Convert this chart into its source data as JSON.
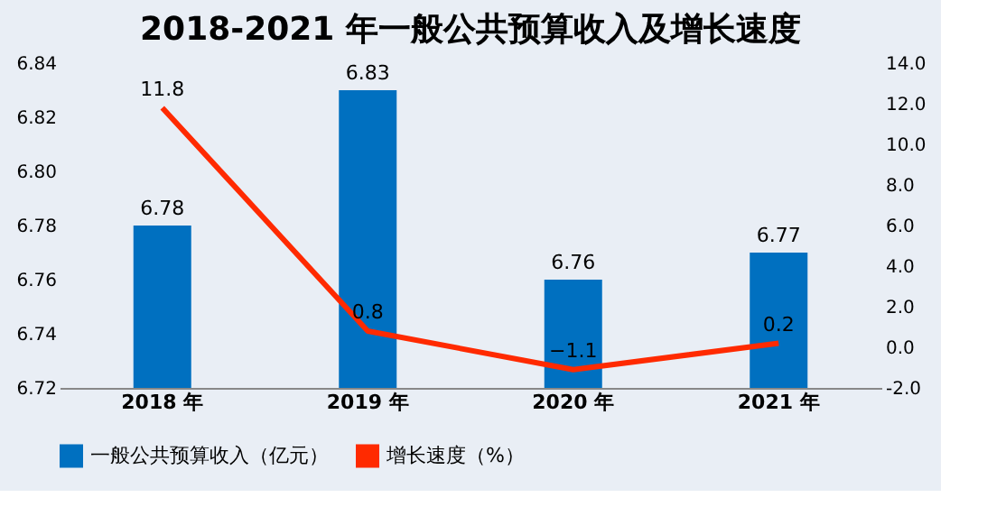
{
  "chart_data": {
    "type": "bar",
    "title": "2018-2021 年一般公共预算收入及增长速度",
    "categories": [
      "2018 年",
      "2019 年",
      "2020 年",
      "2021 年"
    ],
    "series": [
      {
        "name": "一般公共预算收入（亿元）",
        "color": "#0070c0",
        "values": [
          6.78,
          6.83,
          6.76,
          6.77
        ]
      },
      {
        "name": "增长速度（%）",
        "type": "line",
        "axis": "y2",
        "color": "#ff2a00",
        "values": [
          11.8,
          0.8,
          -1.1,
          0.2
        ]
      }
    ],
    "ylim": [
      6.72,
      6.84
    ],
    "yticks": [
      6.72,
      6.74,
      6.76,
      6.78,
      {
        "value": 6.8,
        "label": "6.80"
      },
      6.82,
      6.84
    ],
    "y2lim": [
      -2,
      14
    ],
    "y2ticks": [
      {
        "value": -2,
        "label": "-2.0"
      },
      {
        "value": 0,
        "label": "0.0"
      },
      {
        "value": 2,
        "label": "2.0"
      },
      {
        "value": 4,
        "label": "4.0"
      },
      {
        "value": 6,
        "label": "6.0"
      },
      {
        "value": 8,
        "label": "8.0"
      },
      {
        "value": 10,
        "label": "10.0"
      },
      {
        "value": 12,
        "label": "12.0"
      },
      {
        "value": 14,
        "label": "14.0"
      }
    ],
    "data_labels": true,
    "grid": false,
    "legend": "bottom",
    "marker": "none",
    "line_style": "solid"
  }
}
